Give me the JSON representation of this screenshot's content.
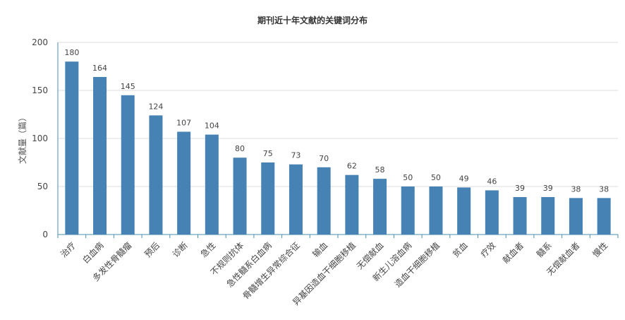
{
  "chart_data": {
    "type": "bar",
    "title": "期刊近十年文献的关键词分布",
    "xlabel": "",
    "ylabel": "文献量（篇）",
    "ylim": [
      0,
      200
    ],
    "yticks": [
      0,
      50,
      100,
      150,
      200
    ],
    "grid": true,
    "legend": "none",
    "bar_color": "#4682b4",
    "categories": [
      "治疗",
      "白血病",
      "多发性骨髓瘤",
      "预后",
      "诊断",
      "急性",
      "不规则抗体",
      "急性髓系白血病",
      "骨髓增生异常综合征",
      "输血",
      "异基因造血干细胞移植",
      "无偿献血",
      "新生儿溶血病",
      "造血干细胞移植",
      "贫血",
      "疗效",
      "献血者",
      "髓系",
      "无偿献血者",
      "慢性"
    ],
    "values": [
      180,
      164,
      145,
      124,
      107,
      104,
      80,
      75,
      73,
      70,
      62,
      58,
      50,
      50,
      49,
      46,
      39,
      39,
      38,
      38
    ]
  }
}
